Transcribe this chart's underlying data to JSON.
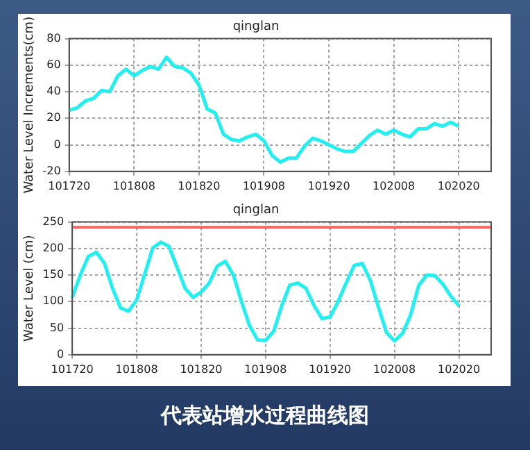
{
  "chart_data": [
    {
      "type": "line",
      "title": "qinglan",
      "ylabel": "Water Level Increments(cm)",
      "ylim": [
        -20,
        80
      ],
      "yticks": [
        -20,
        0,
        20,
        40,
        60,
        80
      ],
      "grid": true,
      "marker": "none",
      "line_style": "solid",
      "categories": [
        "101720",
        null,
        null,
        null,
        null,
        null,
        null,
        null,
        "101808",
        null,
        null,
        null,
        null,
        null,
        null,
        null,
        "101820",
        null,
        null,
        null,
        null,
        null,
        null,
        null,
        "101908",
        null,
        null,
        null,
        null,
        null,
        null,
        null,
        "101920",
        null,
        null,
        null,
        null,
        null,
        null,
        null,
        "102008",
        null,
        null,
        null,
        null,
        null,
        null,
        null,
        "102020",
        null,
        null,
        null,
        null
      ],
      "series": [
        {
          "color": "#22f0f0",
          "values": [
            26,
            28,
            33,
            35,
            41,
            40,
            52,
            57,
            52,
            56,
            59,
            57,
            66,
            59,
            58,
            54,
            45,
            27,
            24,
            8,
            4,
            3,
            6,
            8,
            3,
            -8,
            -13,
            -10,
            -10,
            -1,
            5,
            3,
            0,
            -3,
            -5,
            -5,
            1,
            7,
            11,
            8,
            11,
            8,
            6,
            12,
            12,
            16,
            14,
            17,
            14,
            null,
            null,
            null,
            null
          ]
        }
      ]
    },
    {
      "type": "line",
      "title": "qinglan",
      "ylabel": "Water Level (cm)",
      "ylim": [
        0,
        250
      ],
      "yticks": [
        0,
        50,
        100,
        150,
        200,
        250
      ],
      "grid": true,
      "marker": "none",
      "line_style": "solid",
      "categories": [
        "101720",
        null,
        null,
        null,
        null,
        null,
        null,
        null,
        "101808",
        null,
        null,
        null,
        null,
        null,
        null,
        null,
        "101820",
        null,
        null,
        null,
        null,
        null,
        null,
        null,
        "101908",
        null,
        null,
        null,
        null,
        null,
        null,
        null,
        "101920",
        null,
        null,
        null,
        null,
        null,
        null,
        null,
        "102008",
        null,
        null,
        null,
        null,
        null,
        null,
        null,
        "102020",
        null,
        null,
        null,
        null
      ],
      "series": [
        {
          "color": "#22f0f0",
          "values": [
            108,
            150,
            185,
            193,
            172,
            125,
            88,
            82,
            103,
            152,
            201,
            212,
            204,
            165,
            125,
            108,
            118,
            135,
            167,
            176,
            150,
            100,
            55,
            28,
            27,
            44,
            92,
            131,
            135,
            125,
            93,
            68,
            71,
            100,
            135,
            168,
            172,
            140,
            90,
            42,
            26,
            40,
            75,
            130,
            150,
            149,
            133,
            110,
            92,
            null,
            null,
            null,
            null
          ]
        }
      ],
      "ref_lines": [
        {
          "axis": "y",
          "value": 240,
          "color": "#ff6060"
        }
      ],
      "annotations": [
        "代表站增水过程曲线图"
      ]
    }
  ]
}
